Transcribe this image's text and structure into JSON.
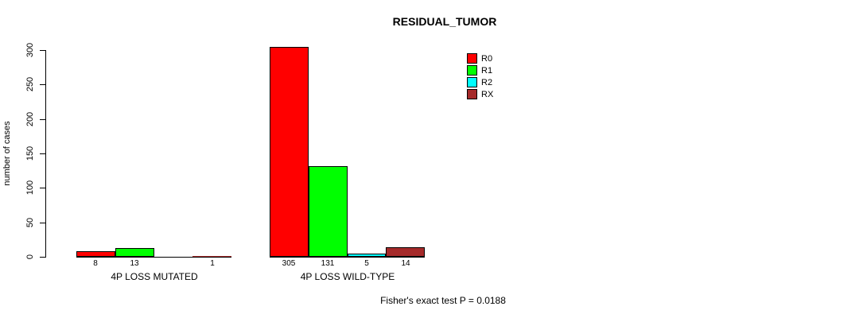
{
  "chart_data": {
    "type": "bar",
    "title": "RESIDUAL_TUMOR",
    "xlabel": "",
    "ylabel": "number of cases",
    "ylim": [
      0,
      300
    ],
    "yticks": [
      0,
      50,
      100,
      150,
      200,
      250,
      300
    ],
    "grid": false,
    "legend_position": "top-right-inside",
    "categories": [
      "4P LOSS MUTATED",
      "4P LOSS WILD-TYPE"
    ],
    "series": [
      {
        "name": "R0",
        "color": "#FF0000",
        "values": [
          8,
          305
        ]
      },
      {
        "name": "R1",
        "color": "#00FF00",
        "values": [
          13,
          131
        ]
      },
      {
        "name": "R2",
        "color": "#00FFFF",
        "values": [
          0,
          5
        ]
      },
      {
        "name": "RX",
        "color": "#A52A2A",
        "values": [
          1,
          14
        ]
      }
    ],
    "bar_value_labels": [
      [
        "8",
        "13",
        "",
        "1"
      ],
      [
        "305",
        "131",
        "5",
        "14"
      ]
    ],
    "annotation": "Fisher's exact test P = 0.0188"
  }
}
